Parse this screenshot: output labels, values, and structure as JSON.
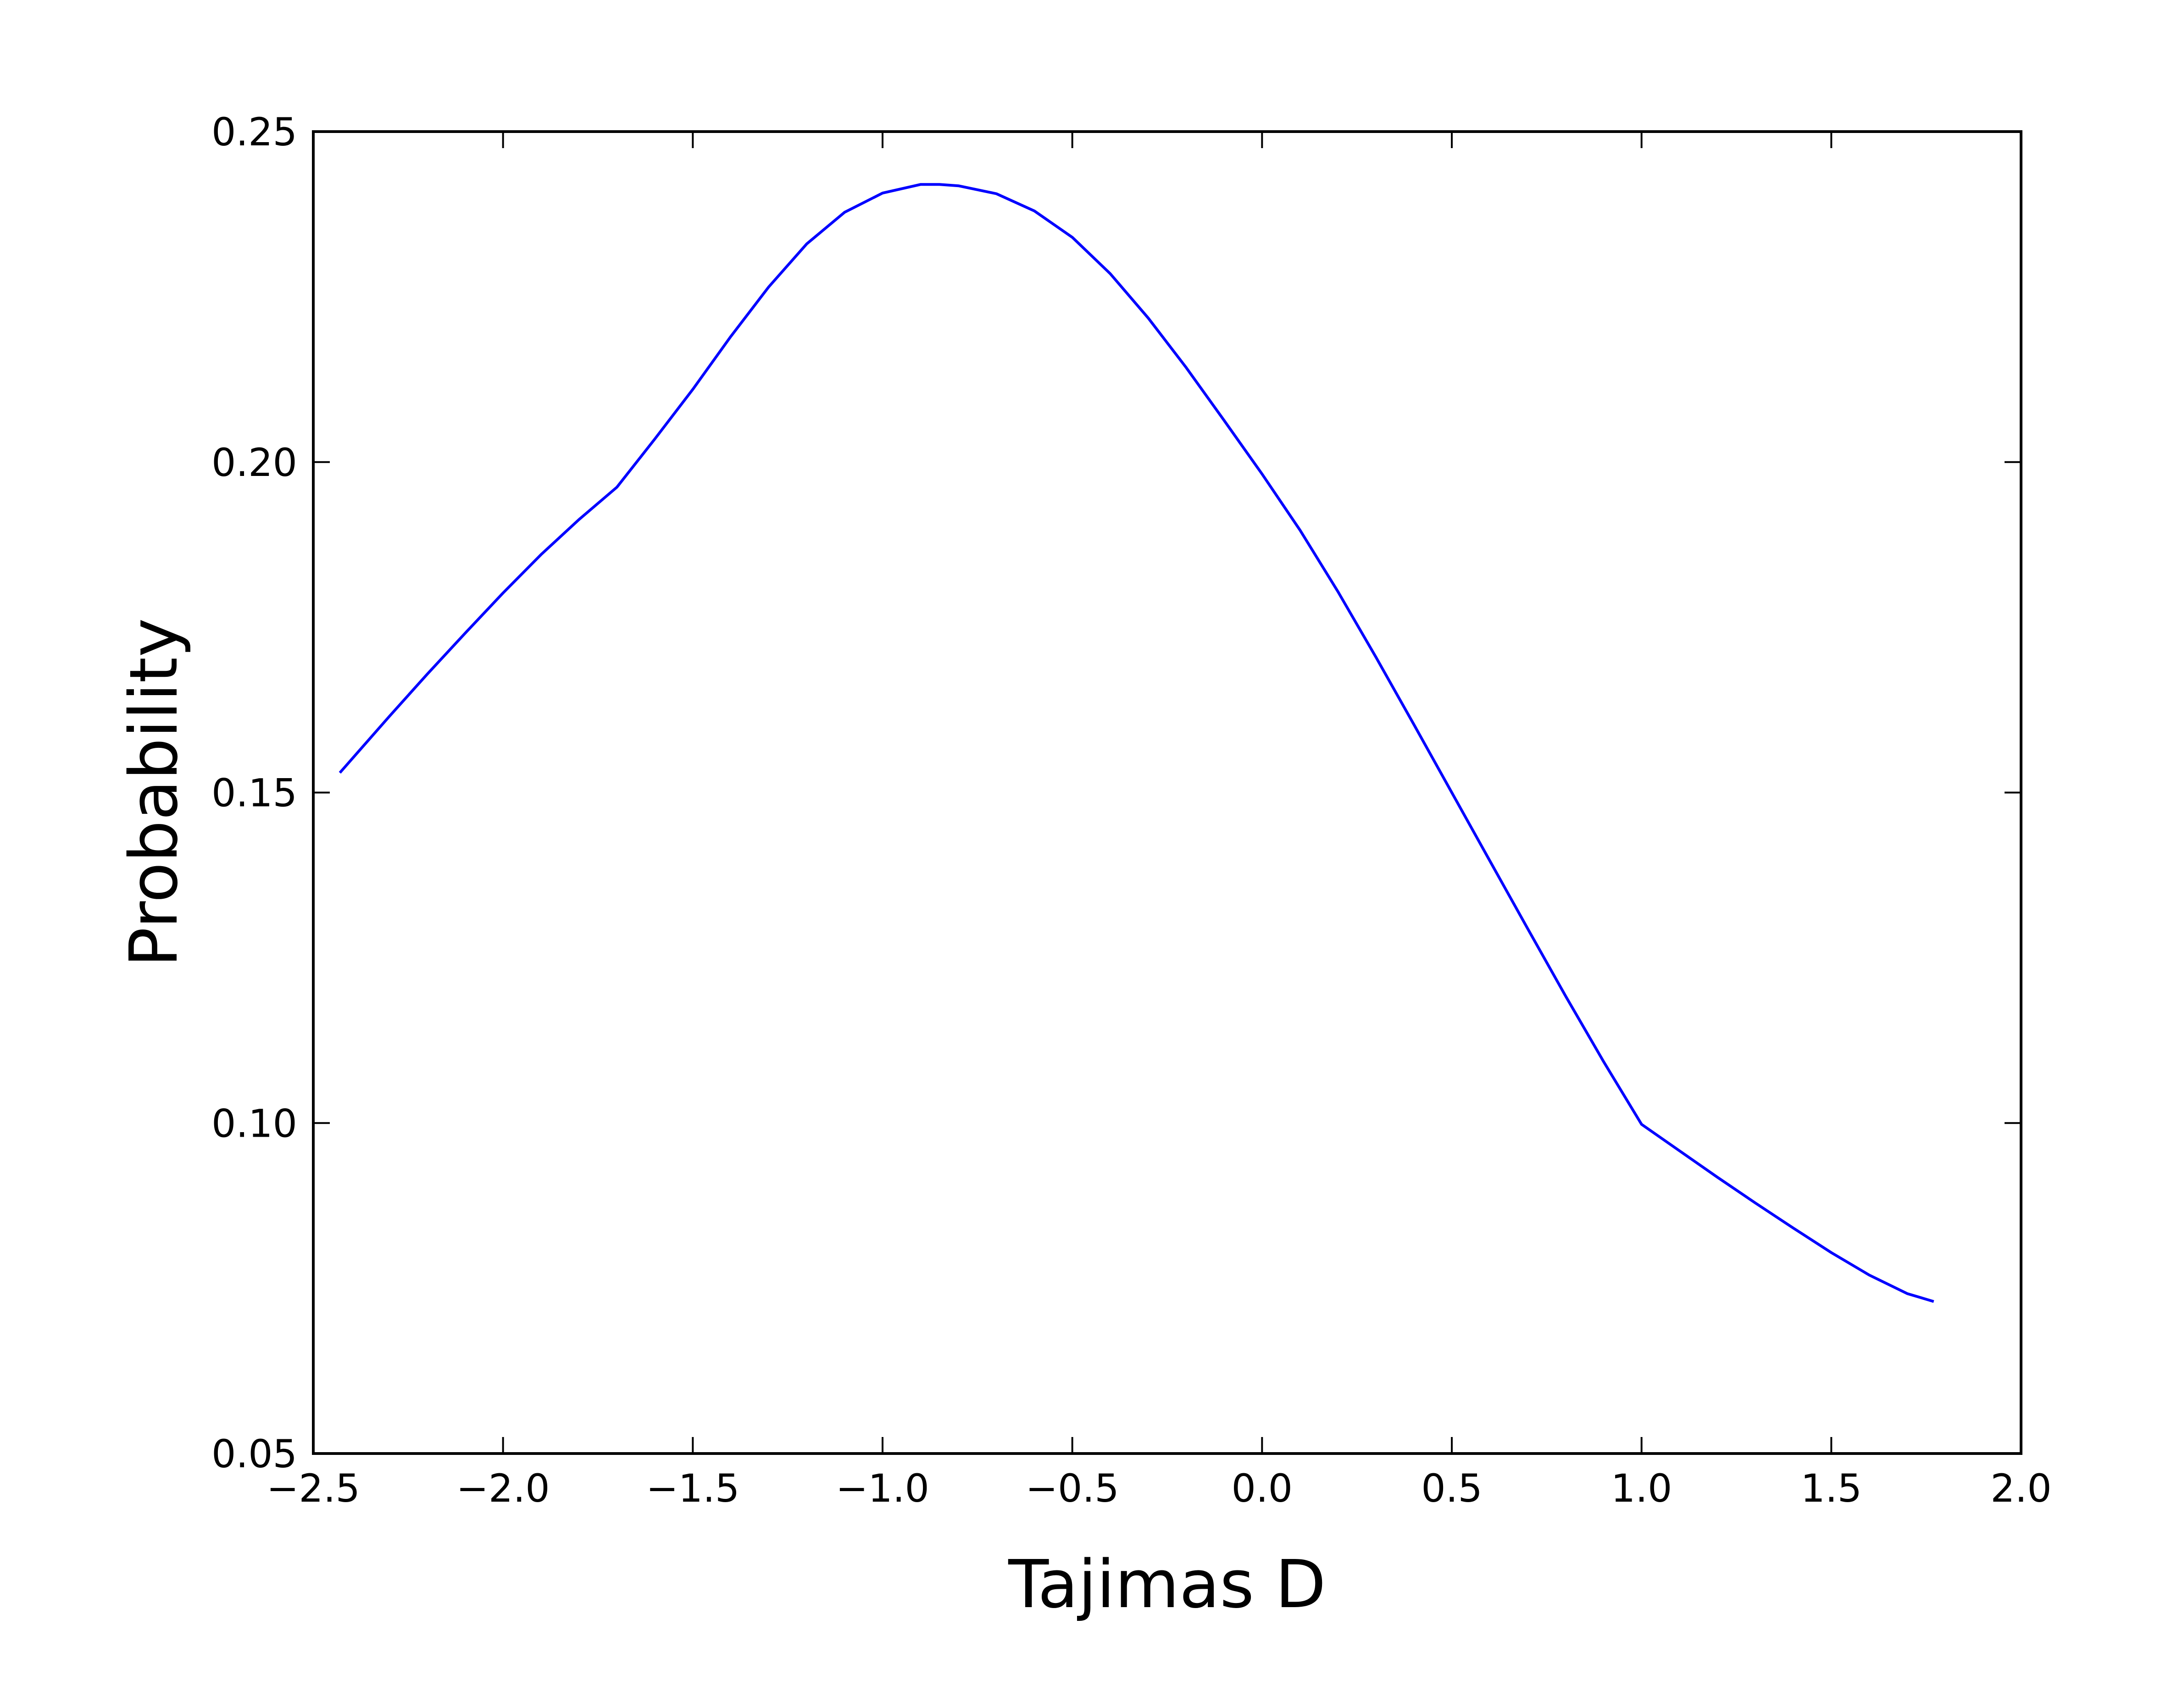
{
  "chart_data": {
    "type": "line",
    "title": "",
    "xlabel": "Tajimas D",
    "ylabel": "Probability",
    "xlim": [
      -2.5,
      2.0
    ],
    "ylim": [
      0.05,
      0.25
    ],
    "xticks": [
      -2.5,
      -2.0,
      -1.5,
      -1.0,
      -0.5,
      0.0,
      0.5,
      1.0,
      1.5,
      2.0
    ],
    "xtick_labels": [
      "−2.5",
      "−2.0",
      "−1.5",
      "−1.0",
      "−0.5",
      "0.0",
      "0.5",
      "1.0",
      "1.5",
      "2.0"
    ],
    "yticks": [
      0.05,
      0.1,
      0.15,
      0.2,
      0.25
    ],
    "ytick_labels": [
      "0.05",
      "0.10",
      "0.15",
      "0.20",
      "0.25"
    ],
    "grid": false,
    "legend": "none",
    "series": [
      {
        "color": "#0000ff",
        "x": [
          -2.43,
          -2.3,
          -2.2,
          -2.1,
          -2.0,
          -1.9,
          -1.8,
          -1.7,
          -1.6,
          -1.5,
          -1.4,
          -1.3,
          -1.2,
          -1.1,
          -1.0,
          -0.9,
          -0.85,
          -0.8,
          -0.7,
          -0.6,
          -0.5,
          -0.4,
          -0.3,
          -0.2,
          -0.1,
          0.0,
          0.1,
          0.2,
          0.3,
          0.4,
          0.5,
          0.6,
          0.7,
          0.8,
          0.9,
          1.0,
          1.1,
          1.2,
          1.3,
          1.4,
          1.5,
          1.6,
          1.7,
          1.77
        ],
        "y": [
          0.153,
          0.1615,
          0.1679,
          0.1741,
          0.1802,
          0.186,
          0.1913,
          0.1962,
          0.2035,
          0.211,
          0.219,
          0.2265,
          0.233,
          0.2378,
          0.2407,
          0.242,
          0.242,
          0.2418,
          0.2406,
          0.238,
          0.234,
          0.2285,
          0.2218,
          0.2143,
          0.2063,
          0.1982,
          0.1897,
          0.1804,
          0.1705,
          0.1603,
          0.15,
          0.1397,
          0.1294,
          0.1192,
          0.1093,
          0.0998,
          0.0958,
          0.0918,
          0.0879,
          0.0841,
          0.0804,
          0.077,
          0.0742,
          0.073
        ]
      }
    ]
  }
}
